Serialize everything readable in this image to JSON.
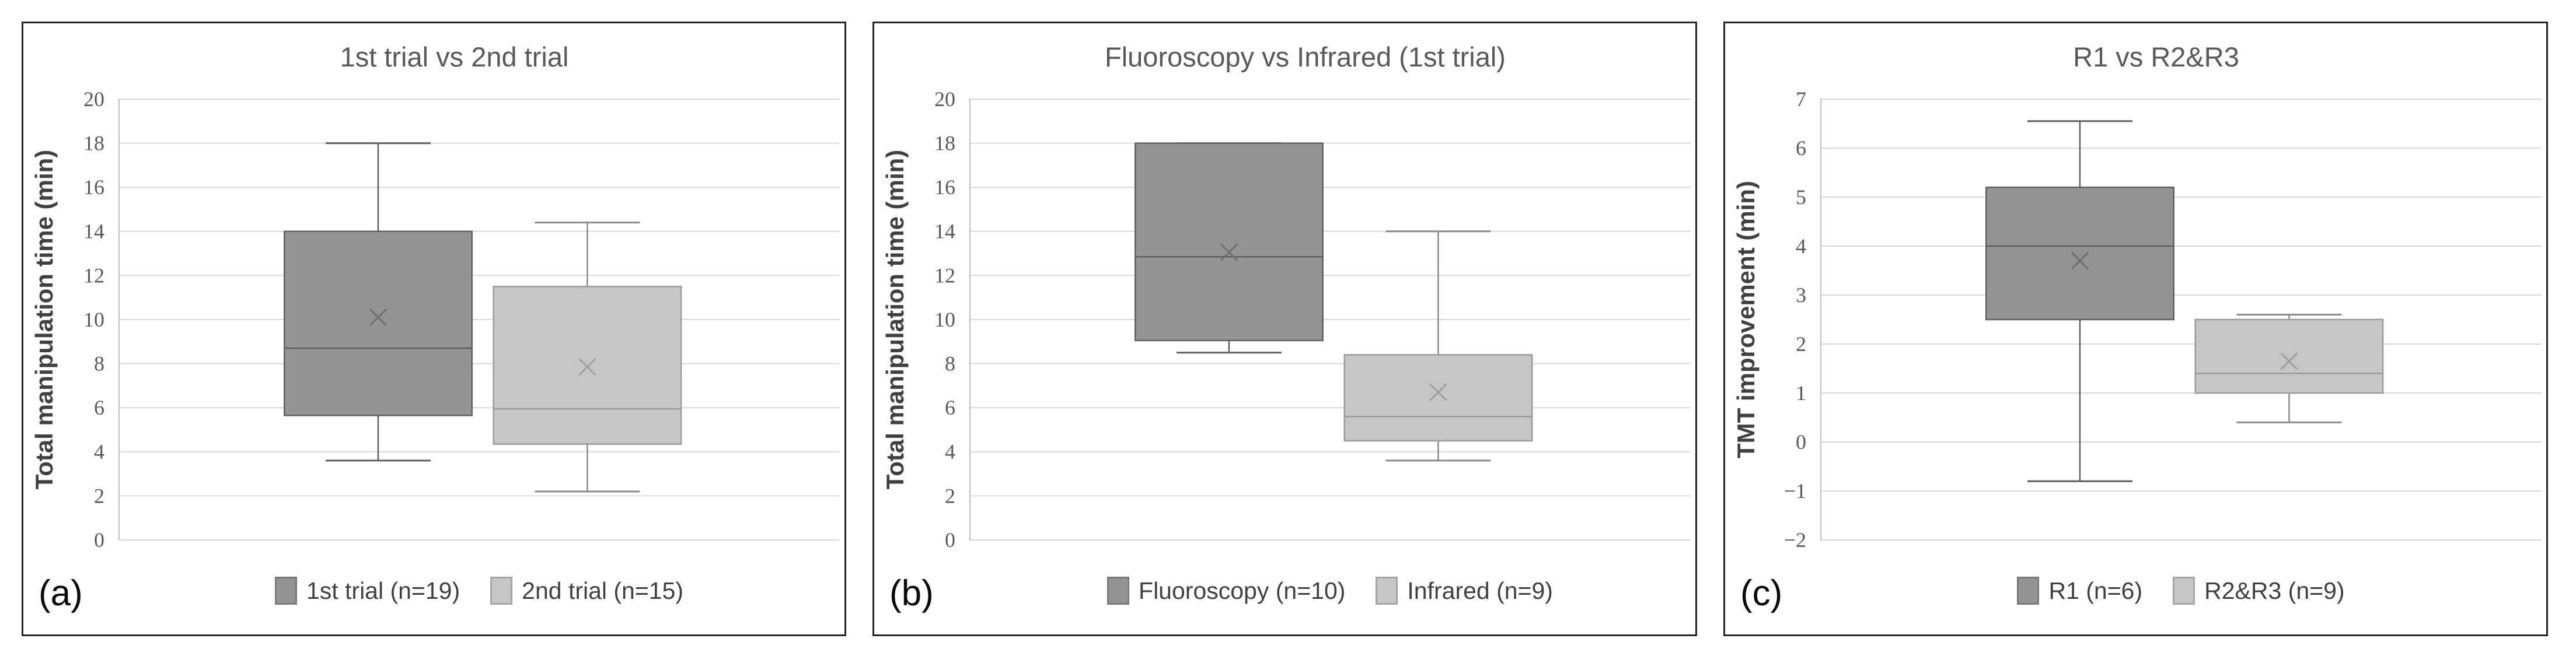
{
  "chart_data": [
    {
      "type": "boxplot",
      "panel_label": "(a)",
      "title": "1st trial vs 2nd trial",
      "ylabel": "Total manipulation time (min)",
      "ylim": [
        0,
        20
      ],
      "ytick_step": 2,
      "grid": true,
      "legend_position": "bottom",
      "series": [
        {
          "name": "1st trial (n=19)",
          "palette": "dark",
          "whisker_low": 3.6,
          "q1": 5.65,
          "median": 8.7,
          "mean": 10.1,
          "q3": 14.0,
          "whisker_high": 18.0
        },
        {
          "name": "2nd trial (n=15)",
          "palette": "light",
          "whisker_low": 2.2,
          "q1": 4.35,
          "median": 5.95,
          "mean": 7.85,
          "q3": 11.5,
          "whisker_high": 14.4
        }
      ]
    },
    {
      "type": "boxplot",
      "panel_label": "(b)",
      "title": "Fluoroscopy vs Infrared (1st trial)",
      "ylabel": "Total manipulation time (min)",
      "ylim": [
        0,
        20
      ],
      "ytick_step": 2,
      "grid": true,
      "legend_position": "bottom",
      "series": [
        {
          "name": "Fluoroscopy (n=10)",
          "palette": "dark",
          "whisker_low": 8.5,
          "q1": 9.05,
          "median": 12.85,
          "mean": 13.05,
          "q3": 18.0,
          "whisker_high": 18.0
        },
        {
          "name": "Infrared (n=9)",
          "palette": "light",
          "whisker_low": 3.6,
          "q1": 4.5,
          "median": 5.6,
          "mean": 6.7,
          "q3": 8.4,
          "whisker_high": 14.0
        }
      ]
    },
    {
      "type": "boxplot",
      "panel_label": "(c)",
      "title": "R1 vs R2&R3",
      "ylabel": "TMT improvement (min)",
      "ylim": [
        -2,
        7
      ],
      "ytick_step": 1,
      "grid": true,
      "legend_position": "bottom",
      "series": [
        {
          "name": "R1 (n=6)",
          "palette": "dark",
          "whisker_low": -0.8,
          "q1": 2.5,
          "median": 4.0,
          "mean": 3.7,
          "q3": 5.2,
          "whisker_high": 6.55
        },
        {
          "name": "R2&R3 (n=9)",
          "palette": "light",
          "whisker_low": 0.4,
          "q1": 1.0,
          "median": 1.4,
          "mean": 1.65,
          "q3": 2.5,
          "whisker_high": 2.6
        }
      ]
    }
  ],
  "styles": {
    "palettes": {
      "dark": {
        "fill": "#949494",
        "stroke": "#5f5f5f",
        "whisker": "#5f5f5f",
        "median": "#5f5f5f",
        "mean": "#6f6f6f",
        "swatch_border": "#7a7a7a"
      },
      "light": {
        "fill": "#c6c6c6",
        "stroke": "#9b9b9b",
        "whisker": "#8a8a8a",
        "median": "#9b9b9b",
        "mean": "#a0a0a0",
        "swatch_border": "#a6a6a6"
      }
    },
    "gridline": "#d9d9d9",
    "axis_line": "#bfbfbf",
    "title_color": "#595959",
    "axis_title_color": "#404040",
    "tick_color": "#595959",
    "legend_color": "#404040",
    "panel_border": "#262626"
  }
}
